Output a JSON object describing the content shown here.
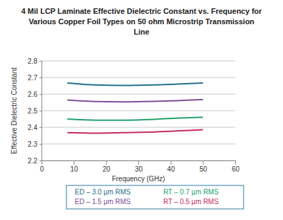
{
  "chart_data": {
    "type": "line",
    "title": "4 Mil LCP Laminate Effective Dielectric Constant vs. Frequency for Various Copper Foil Types on 50 ohm Microstrip Transmission Line",
    "x_label": "Frequency (GHz)",
    "y_label": "Effective Dielectric Constant",
    "x": [
      8,
      17,
      25,
      35,
      42,
      50
    ],
    "series": [
      {
        "name": "ED – 3.0 µm RMS",
        "color": "#1f6f8b",
        "values": [
          2.667,
          2.655,
          2.652,
          2.655,
          2.66,
          2.667
        ]
      },
      {
        "name": "ED – 1.5 µm RMS",
        "color": "#7d4b9b",
        "values": [
          2.565,
          2.555,
          2.553,
          2.556,
          2.56,
          2.567
        ]
      },
      {
        "name": "RT – 0.7 µm RMS",
        "color": "#22a06b",
        "values": [
          2.45,
          2.443,
          2.443,
          2.448,
          2.455,
          2.46
        ]
      },
      {
        "name": "RT – 0.5 µm RMS",
        "color": "#c42a5d",
        "values": [
          2.368,
          2.365,
          2.368,
          2.372,
          2.378,
          2.385
        ]
      }
    ],
    "xlim": [
      0,
      60
    ],
    "xticks": [
      0,
      10,
      20,
      30,
      40,
      50,
      60
    ],
    "ylim": [
      2.2,
      2.8
    ],
    "yticks": [
      2.2,
      2.3,
      2.4,
      2.5,
      2.6,
      2.7,
      2.8
    ],
    "grid": true,
    "legend": "bottom"
  }
}
